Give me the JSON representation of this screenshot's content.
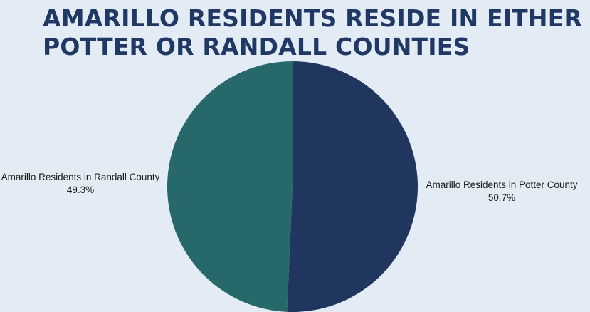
{
  "title": "AMARILLO RESIDENTS RESIDE IN EITHER POTTER OR RANDALL COUNTIES",
  "chart_data": {
    "type": "pie",
    "title": "AMARILLO RESIDENTS RESIDE IN EITHER POTTER OR RANDALL COUNTIES",
    "slices": [
      {
        "label": "Amarillo Residents in Potter County",
        "value": 50.7,
        "value_label": "50.7%",
        "color": "#20365f"
      },
      {
        "label": "Amarillo Residents in Randall County",
        "value": 49.3,
        "value_label": "49.3%",
        "color": "#27686b"
      }
    ],
    "start": "top",
    "direction": "clockwise",
    "legend": "none"
  }
}
